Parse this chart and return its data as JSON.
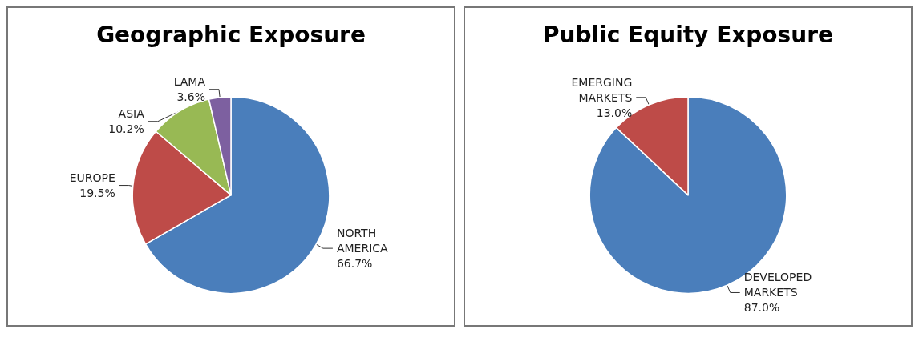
{
  "chart_data": [
    {
      "type": "pie",
      "title": "Geographic Exposure",
      "categories": [
        "NORTH\nAMERICA",
        "EUROPE",
        "ASIA",
        "LAMA"
      ],
      "values": [
        66.7,
        19.5,
        10.2,
        3.6
      ],
      "value_labels": [
        "66.7%",
        "19.5%",
        "10.2%",
        "3.6%"
      ],
      "colors": [
        "#4a7ebb",
        "#be4b48",
        "#98b954",
        "#7d60a0"
      ],
      "legend": false
    },
    {
      "type": "pie",
      "title": "Public Equity Exposure",
      "categories": [
        "DEVELOPED\nMARKETS",
        "EMERGING\nMARKETS"
      ],
      "values": [
        87.0,
        13.0
      ],
      "value_labels": [
        "87.0%",
        "13.0%"
      ],
      "colors": [
        "#4a7ebb",
        "#be4b48"
      ],
      "legend": false
    }
  ]
}
